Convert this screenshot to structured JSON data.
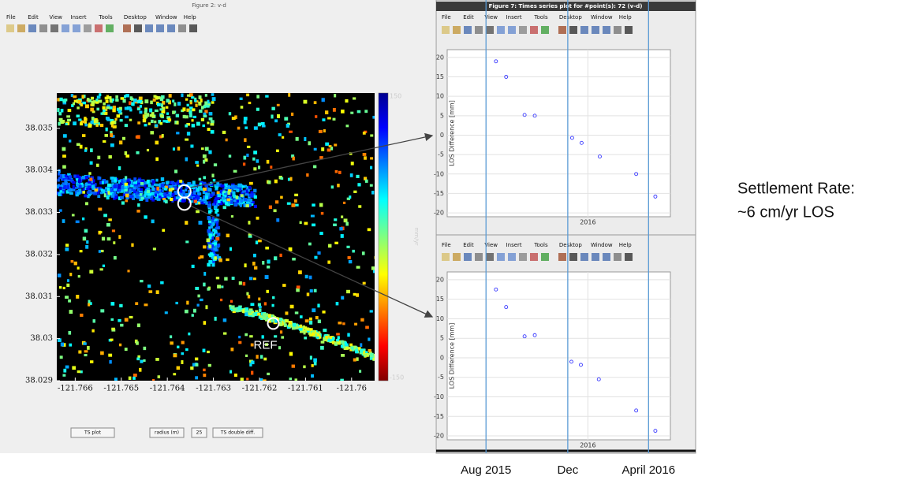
{
  "windows": [
    {
      "title": "Figure 2: v-d",
      "menu": [
        "File",
        "Edit",
        "View",
        "Insert",
        "Tools",
        "Desktop",
        "Window",
        "Help"
      ],
      "buttons": [
        "TS plot",
        "TS double diff."
      ],
      "radius_label": "radius (m)",
      "radius_value": 25
    },
    {
      "title": "Figure 7:  Times series plot for #point(s): 72 (v-d)",
      "menu": [
        "File",
        "Edit",
        "View",
        "Insert",
        "Tools",
        "Desktop",
        "Window",
        "Help"
      ]
    },
    {
      "menu": [
        "File",
        "Edit",
        "View",
        "Insert",
        "Tools",
        "Desktop",
        "Window",
        "Help"
      ]
    }
  ],
  "chart_data": [
    {
      "type": "map",
      "xlim": [
        -121.7664,
        -121.7595
      ],
      "ylim": [
        38.029,
        38.03584
      ],
      "xticks": [
        -121.766,
        -121.765,
        -121.764,
        -121.763,
        -121.762,
        -121.761,
        -121.76
      ],
      "yticks": [
        38.029,
        38.03,
        38.031,
        38.032,
        38.033,
        38.034,
        38.035
      ],
      "clim": [
        -150,
        150
      ],
      "colorbar_label": "mm/yr",
      "ref": {
        "label": "REF",
        "x": -121.7617,
        "y": 38.03036
      },
      "selected": [
        {
          "x": -121.76363,
          "y": 38.0335
        },
        {
          "x": -121.76363,
          "y": 38.03321
        }
      ]
    },
    {
      "type": "scatter",
      "ylabel": "LOS Difference [mm]",
      "xlim": [
        2015.42,
        2016.34
      ],
      "ylim": [
        -21,
        22
      ],
      "xticks": [
        {
          "value": 2016,
          "label": "2016"
        }
      ],
      "yticks": [
        -20,
        -15,
        -10,
        -5,
        0,
        5,
        10,
        15,
        20
      ],
      "grid": true,
      "color": "#3a3aff",
      "x": [
        2015.621,
        2015.663,
        2015.739,
        2015.781,
        2015.935,
        2015.974,
        2016.049,
        2016.199,
        2016.278
      ],
      "values": [
        19,
        15,
        5.2,
        5,
        -0.7,
        -2,
        -5.5,
        -10,
        -15.8
      ]
    },
    {
      "type": "scatter",
      "ylabel": "LOS Difference [mm]",
      "xlim": [
        2015.42,
        2016.34
      ],
      "ylim": [
        -21,
        22
      ],
      "xticks": [
        {
          "value": 2016,
          "label": "2016"
        }
      ],
      "yticks": [
        -20,
        -15,
        -10,
        -5,
        0,
        5,
        10,
        15,
        20
      ],
      "grid": true,
      "color": "#3a3aff",
      "x": [
        2015.621,
        2015.663,
        2015.739,
        2015.781,
        2015.932,
        2015.971,
        2016.045,
        2016.199,
        2016.278
      ],
      "values": [
        17.5,
        13,
        5.5,
        5.8,
        -1,
        -1.8,
        -5.5,
        -13.5,
        -18.7
      ]
    }
  ],
  "annotations": [
    {
      "label": "Aug 2015",
      "x": 2015.58
    },
    {
      "label": "Dec",
      "x": 2015.917
    },
    {
      "label": "April 2016",
      "x": 2016.25
    }
  ],
  "note": [
    "Settlement Rate:",
    "~6 cm/yr LOS"
  ]
}
